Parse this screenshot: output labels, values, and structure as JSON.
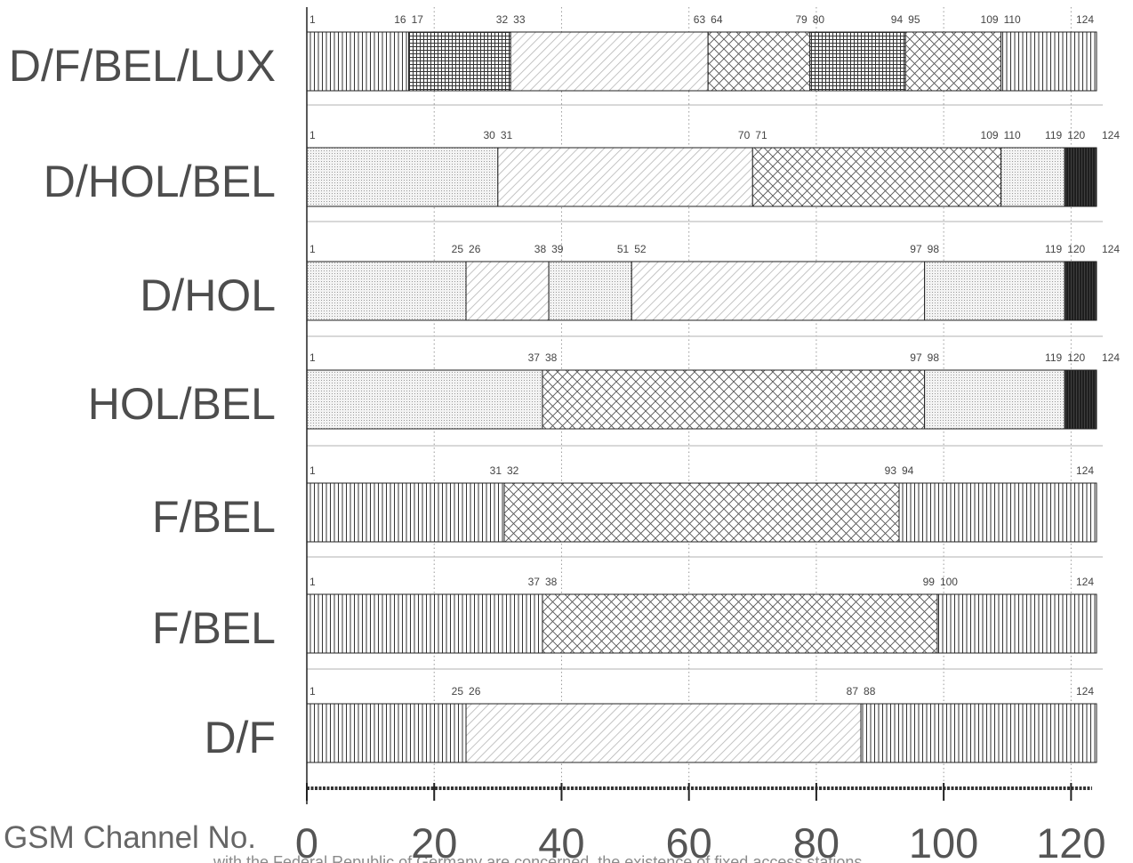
{
  "chart_data": {
    "type": "bar",
    "orientation": "horizontal",
    "stacked": true,
    "xlabel": "GSM Channel No.",
    "xlim": [
      0,
      124
    ],
    "xticks": [
      0,
      20,
      40,
      60,
      80,
      100,
      120
    ],
    "grid": true,
    "rows": [
      {
        "label": "D/F/BEL/LUX",
        "segments": [
          {
            "from": 1,
            "to": 16,
            "fill": "vertical-hatch"
          },
          {
            "from": 17,
            "to": 32,
            "fill": "square-grid"
          },
          {
            "from": 33,
            "to": 63,
            "fill": "diagonal-hatch"
          },
          {
            "from": 64,
            "to": 79,
            "fill": "cross-hatch"
          },
          {
            "from": 80,
            "to": 94,
            "fill": "square-grid"
          },
          {
            "from": 95,
            "to": 109,
            "fill": "cross-hatch"
          },
          {
            "from": 110,
            "to": 124,
            "fill": "vertical-hatch"
          }
        ]
      },
      {
        "label": "D/HOL/BEL",
        "segments": [
          {
            "from": 1,
            "to": 30,
            "fill": "dotted"
          },
          {
            "from": 31,
            "to": 70,
            "fill": "diagonal-hatch"
          },
          {
            "from": 71,
            "to": 109,
            "fill": "cross-hatch"
          },
          {
            "from": 110,
            "to": 119,
            "fill": "dotted"
          },
          {
            "from": 120,
            "to": 124,
            "fill": "solid-dark"
          }
        ]
      },
      {
        "label": "D/HOL",
        "segments": [
          {
            "from": 1,
            "to": 25,
            "fill": "dotted"
          },
          {
            "from": 26,
            "to": 38,
            "fill": "diagonal-hatch"
          },
          {
            "from": 39,
            "to": 51,
            "fill": "dotted"
          },
          {
            "from": 52,
            "to": 97,
            "fill": "diagonal-hatch"
          },
          {
            "from": 98,
            "to": 119,
            "fill": "dotted"
          },
          {
            "from": 120,
            "to": 124,
            "fill": "solid-dark"
          }
        ]
      },
      {
        "label": "HOL/BEL",
        "segments": [
          {
            "from": 1,
            "to": 37,
            "fill": "dotted"
          },
          {
            "from": 38,
            "to": 97,
            "fill": "cross-hatch"
          },
          {
            "from": 98,
            "to": 119,
            "fill": "dotted"
          },
          {
            "from": 120,
            "to": 124,
            "fill": "solid-dark"
          }
        ]
      },
      {
        "label": "F/BEL",
        "segments": [
          {
            "from": 1,
            "to": 31,
            "fill": "vertical-hatch"
          },
          {
            "from": 32,
            "to": 93,
            "fill": "cross-hatch"
          },
          {
            "from": 94,
            "to": 124,
            "fill": "vertical-hatch"
          }
        ]
      },
      {
        "label": "F/BEL",
        "segments": [
          {
            "from": 1,
            "to": 37,
            "fill": "vertical-hatch"
          },
          {
            "from": 38,
            "to": 99,
            "fill": "cross-hatch"
          },
          {
            "from": 100,
            "to": 124,
            "fill": "vertical-hatch"
          }
        ]
      },
      {
        "label": "D/F",
        "segments": [
          {
            "from": 1,
            "to": 25,
            "fill": "vertical-hatch"
          },
          {
            "from": 26,
            "to": 87,
            "fill": "diagonal-hatch"
          },
          {
            "from": 88,
            "to": 124,
            "fill": "vertical-hatch"
          }
        ]
      }
    ]
  },
  "caption_fragment": "with the Federal Republic of Germany are concerned, the existence of fixed access stations"
}
